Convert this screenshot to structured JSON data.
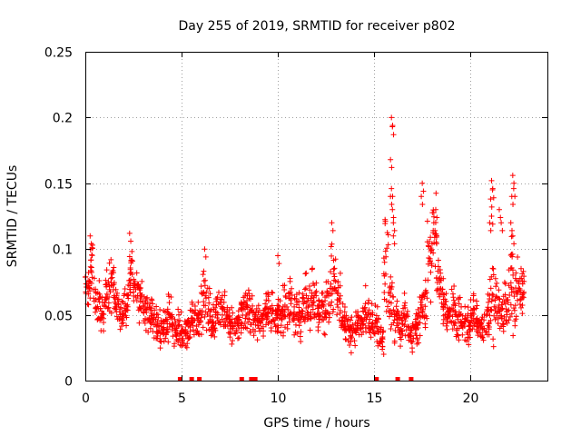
{
  "chart_data": {
    "type": "scatter",
    "title": "Day 255 of 2019, SRMTID for receiver p802",
    "xlabel": "GPS time / hours",
    "ylabel": "SRMTID / TECUs",
    "xlim": [
      0,
      24
    ],
    "ylim": [
      0,
      0.25
    ],
    "x_ticks": [
      0,
      5,
      10,
      15,
      20
    ],
    "x_tick_labels": [
      "0",
      "5",
      "10",
      "15",
      "20"
    ],
    "y_ticks": [
      0,
      0.05,
      0.1,
      0.15,
      0.2,
      0.25
    ],
    "y_tick_labels": [
      "0",
      "0.05",
      "0.1",
      "0.15",
      "0.2",
      "0.25"
    ],
    "grid": true,
    "marker": "+",
    "series_color": "#ff0000",
    "series": [
      {
        "name": "SRMTID",
        "x": [
          0.0,
          0.25,
          0.5,
          0.75,
          1.0,
          1.25,
          1.5,
          1.75,
          2.0,
          2.25,
          2.5,
          2.75,
          3.0,
          3.25,
          3.5,
          3.75,
          4.0,
          4.25,
          4.5,
          4.75,
          5.0,
          5.25,
          5.5,
          5.75,
          6.0,
          6.25,
          6.5,
          6.75,
          7.0,
          7.25,
          7.5,
          7.75,
          8.0,
          8.25,
          8.5,
          8.75,
          9.0,
          9.25,
          9.5,
          9.75,
          10.0,
          10.25,
          10.5,
          10.75,
          11.0,
          11.25,
          11.5,
          11.75,
          12.0,
          12.25,
          12.5,
          12.75,
          13.0,
          13.25,
          13.5,
          13.75,
          14.0,
          14.25,
          14.5,
          14.75,
          15.0,
          15.25,
          15.5,
          15.75,
          16.0,
          16.25,
          16.5,
          16.75,
          17.0,
          17.25,
          17.5,
          17.75,
          18.0,
          18.25,
          18.5,
          18.75,
          19.0,
          19.25,
          19.5,
          19.75,
          20.0,
          20.25,
          20.5,
          20.75,
          21.0,
          21.25,
          21.5,
          21.75,
          22.0,
          22.25,
          22.5,
          22.75
        ],
        "y": [
          0.07,
          0.085,
          0.06,
          0.05,
          0.065,
          0.075,
          0.06,
          0.05,
          0.06,
          0.085,
          0.07,
          0.06,
          0.055,
          0.05,
          0.045,
          0.04,
          0.045,
          0.05,
          0.04,
          0.04,
          0.035,
          0.04,
          0.05,
          0.045,
          0.06,
          0.055,
          0.045,
          0.05,
          0.055,
          0.045,
          0.04,
          0.045,
          0.05,
          0.055,
          0.05,
          0.045,
          0.045,
          0.055,
          0.05,
          0.045,
          0.05,
          0.055,
          0.06,
          0.055,
          0.05,
          0.06,
          0.055,
          0.065,
          0.05,
          0.055,
          0.06,
          0.08,
          0.06,
          0.045,
          0.04,
          0.035,
          0.04,
          0.045,
          0.05,
          0.045,
          0.04,
          0.03,
          0.08,
          0.06,
          0.045,
          0.04,
          0.05,
          0.035,
          0.04,
          0.055,
          0.06,
          0.09,
          0.11,
          0.075,
          0.06,
          0.05,
          0.055,
          0.05,
          0.045,
          0.04,
          0.05,
          0.045,
          0.04,
          0.05,
          0.06,
          0.055,
          0.05,
          0.06,
          0.07,
          0.065,
          0.07,
          0.075
        ],
        "spread": [
          0.012,
          0.02,
          0.015,
          0.012,
          0.015,
          0.02,
          0.015,
          0.012,
          0.015,
          0.018,
          0.015,
          0.015,
          0.012,
          0.012,
          0.012,
          0.012,
          0.012,
          0.015,
          0.012,
          0.012,
          0.01,
          0.012,
          0.015,
          0.012,
          0.02,
          0.018,
          0.012,
          0.015,
          0.015,
          0.012,
          0.012,
          0.012,
          0.015,
          0.015,
          0.015,
          0.012,
          0.012,
          0.015,
          0.015,
          0.012,
          0.015,
          0.018,
          0.018,
          0.015,
          0.015,
          0.018,
          0.015,
          0.02,
          0.015,
          0.018,
          0.018,
          0.025,
          0.018,
          0.012,
          0.012,
          0.01,
          0.012,
          0.012,
          0.015,
          0.012,
          0.012,
          0.01,
          0.04,
          0.02,
          0.015,
          0.012,
          0.015,
          0.01,
          0.012,
          0.02,
          0.02,
          0.025,
          0.025,
          0.02,
          0.02,
          0.015,
          0.015,
          0.015,
          0.012,
          0.012,
          0.015,
          0.012,
          0.012,
          0.015,
          0.03,
          0.02,
          0.015,
          0.018,
          0.03,
          0.02,
          0.015,
          0.015
        ],
        "peaks": [
          {
            "x": 0.25,
            "y": 0.11
          },
          {
            "x": 2.3,
            "y": 0.112
          },
          {
            "x": 6.2,
            "y": 0.1
          },
          {
            "x": 10.0,
            "y": 0.095
          },
          {
            "x": 12.8,
            "y": 0.12
          },
          {
            "x": 15.9,
            "y": 0.2
          },
          {
            "x": 15.95,
            "y": 0.193
          },
          {
            "x": 15.85,
            "y": 0.168
          },
          {
            "x": 15.9,
            "y": 0.146
          },
          {
            "x": 15.85,
            "y": 0.14
          },
          {
            "x": 15.95,
            "y": 0.13
          },
          {
            "x": 16.0,
            "y": 0.12
          },
          {
            "x": 16.0,
            "y": 0.11
          },
          {
            "x": 17.5,
            "y": 0.15
          },
          {
            "x": 17.45,
            "y": 0.14
          },
          {
            "x": 18.2,
            "y": 0.13
          },
          {
            "x": 18.1,
            "y": 0.12
          },
          {
            "x": 21.1,
            "y": 0.152
          },
          {
            "x": 21.15,
            "y": 0.145
          },
          {
            "x": 21.05,
            "y": 0.138
          },
          {
            "x": 21.1,
            "y": 0.125
          },
          {
            "x": 21.0,
            "y": 0.12
          },
          {
            "x": 21.5,
            "y": 0.13
          },
          {
            "x": 21.6,
            "y": 0.12
          },
          {
            "x": 22.2,
            "y": 0.156
          },
          {
            "x": 22.25,
            "y": 0.146
          },
          {
            "x": 22.15,
            "y": 0.14
          },
          {
            "x": 22.1,
            "y": 0.12
          },
          {
            "x": 22.2,
            "y": 0.11
          }
        ],
        "zero_points_x": [
          4.9,
          5.5,
          5.9,
          8.1,
          8.6,
          8.8,
          15.1,
          16.2,
          16.9
        ]
      }
    ]
  }
}
